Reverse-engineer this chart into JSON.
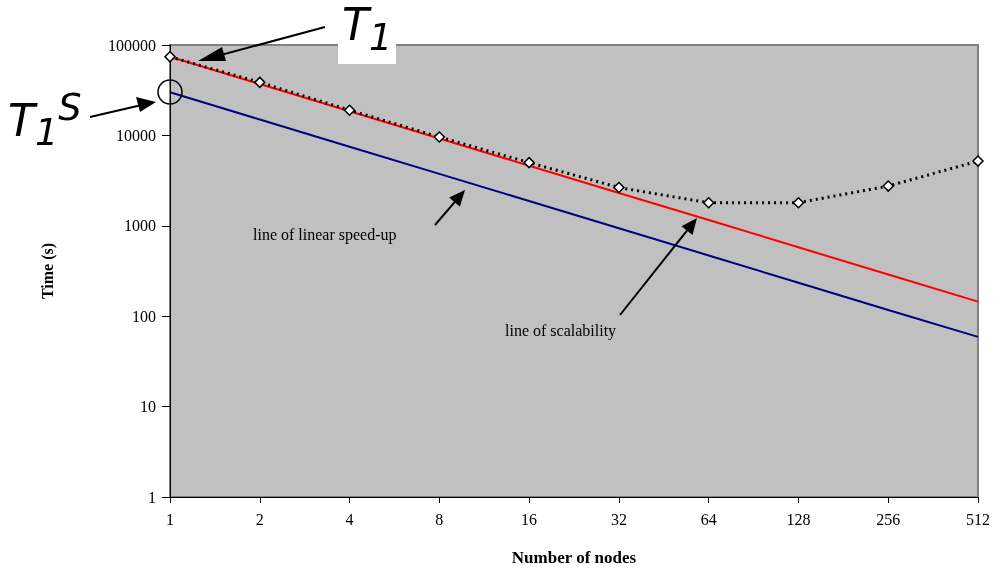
{
  "chart_data": {
    "type": "line",
    "xlabel": "Number of nodes",
    "ylabel": "Time (s)",
    "categories": [
      "1",
      "2",
      "4",
      "8",
      "16",
      "32",
      "64",
      "128",
      "256",
      "512"
    ],
    "series": [
      {
        "color": "#000000",
        "marker": "diamond",
        "line_style": "dotted",
        "values": [
          74000,
          38600,
          19000,
          9600,
          5000,
          2650,
          1800,
          1800,
          2750,
          5200
        ]
      },
      {
        "color": "#ff0000",
        "marker": "none",
        "line_style": "solid",
        "values": [
          74000,
          37000,
          18500,
          9250,
          4620,
          2310,
          1160,
          578,
          289,
          145
        ]
      },
      {
        "color": "#000080",
        "marker": "none",
        "line_style": "solid",
        "values": [
          30000,
          15000,
          7500,
          3750,
          1880,
          940,
          470,
          234,
          117,
          59
        ]
      }
    ],
    "log": "y",
    "ylim": [
      1,
      100000
    ],
    "yticks": [
      1,
      10,
      100,
      1000,
      10000,
      100000
    ],
    "grid": false,
    "annotations": [
      "T$_{1}$",
      "T$_{1}$$^{S}$",
      "line of linear speed-up",
      "line of scalability"
    ]
  }
}
